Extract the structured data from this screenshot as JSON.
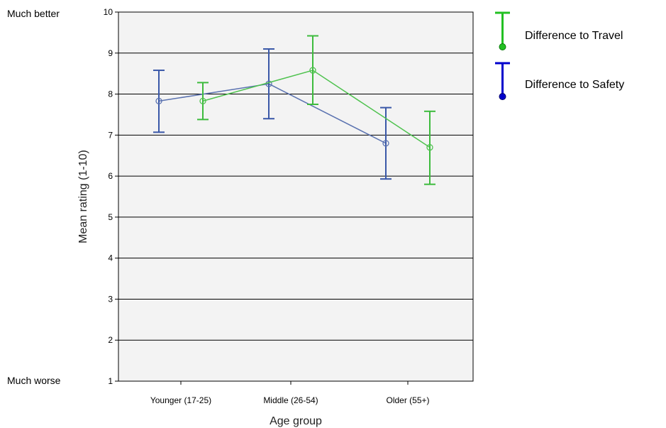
{
  "chart_data": {
    "type": "line",
    "xlabel": "Age group",
    "ylabel": "Mean rating (1-10)",
    "ylim": [
      1,
      10
    ],
    "yticks": [
      1,
      2,
      3,
      4,
      5,
      6,
      7,
      8,
      9,
      10
    ],
    "categories": [
      "Younger (17-25)",
      "Middle (26-54)",
      "Older (55+)"
    ],
    "side_labels": {
      "top": "Much better",
      "bottom": "Much worse"
    },
    "grid": true,
    "legend_position": "right",
    "series": [
      {
        "name": "Difference to Safety",
        "color": "#5a72b0",
        "legend_color": "#0000cc",
        "values": [
          7.83,
          8.25,
          6.8
        ],
        "ci_low": [
          7.07,
          7.4,
          5.93
        ],
        "ci_high": [
          8.58,
          9.1,
          7.67
        ]
      },
      {
        "name": "Difference to Travel",
        "color": "#4ec24e",
        "legend_color": "#22c022",
        "values": [
          7.83,
          8.58,
          6.7
        ],
        "ci_low": [
          7.38,
          7.75,
          5.8
        ],
        "ci_high": [
          8.28,
          9.42,
          7.58
        ]
      }
    ]
  }
}
